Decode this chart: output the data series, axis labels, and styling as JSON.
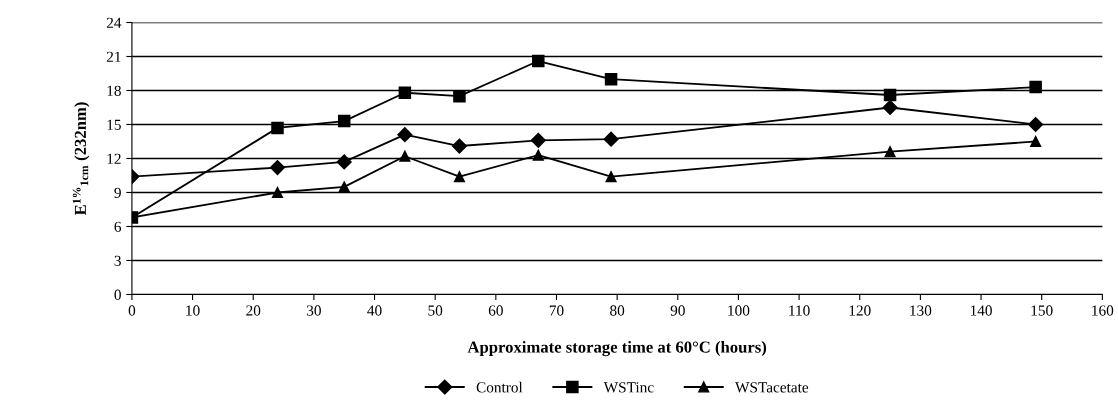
{
  "chart_data": {
    "type": "line",
    "xlabel": "Approximate storage time at 60°C (hours)",
    "ylabel": "E$^{1%}$$_{1cm}$ (232nm)",
    "x": [
      0,
      24,
      35,
      45,
      54,
      67,
      79,
      125,
      149
    ],
    "series": [
      {
        "name": "Control",
        "color": "#000000",
        "marker": "diamond",
        "values": [
          10.4,
          11.2,
          11.7,
          14.1,
          13.1,
          13.6,
          13.7,
          16.5,
          15.0
        ]
      },
      {
        "name": "WSTinc",
        "color": "#000000",
        "marker": "square",
        "values": [
          6.8,
          14.7,
          15.3,
          17.8,
          17.5,
          20.6,
          19.0,
          17.6,
          18.3
        ]
      },
      {
        "name": "WSTacetate",
        "color": "#000000",
        "marker": "triangle",
        "values": [
          6.8,
          9.0,
          9.5,
          12.2,
          10.4,
          12.3,
          10.4,
          12.6,
          13.5
        ]
      }
    ],
    "xlim": [
      0,
      160
    ],
    "xticks": [
      0,
      10,
      20,
      30,
      40,
      50,
      60,
      70,
      80,
      90,
      100,
      110,
      120,
      130,
      140,
      150,
      160
    ],
    "ylim": [
      0,
      24
    ],
    "yticks": [
      0,
      3,
      6,
      9,
      12,
      15,
      18,
      21,
      24
    ],
    "grid": "y",
    "legend": "bottom",
    "line_style": "solid"
  }
}
